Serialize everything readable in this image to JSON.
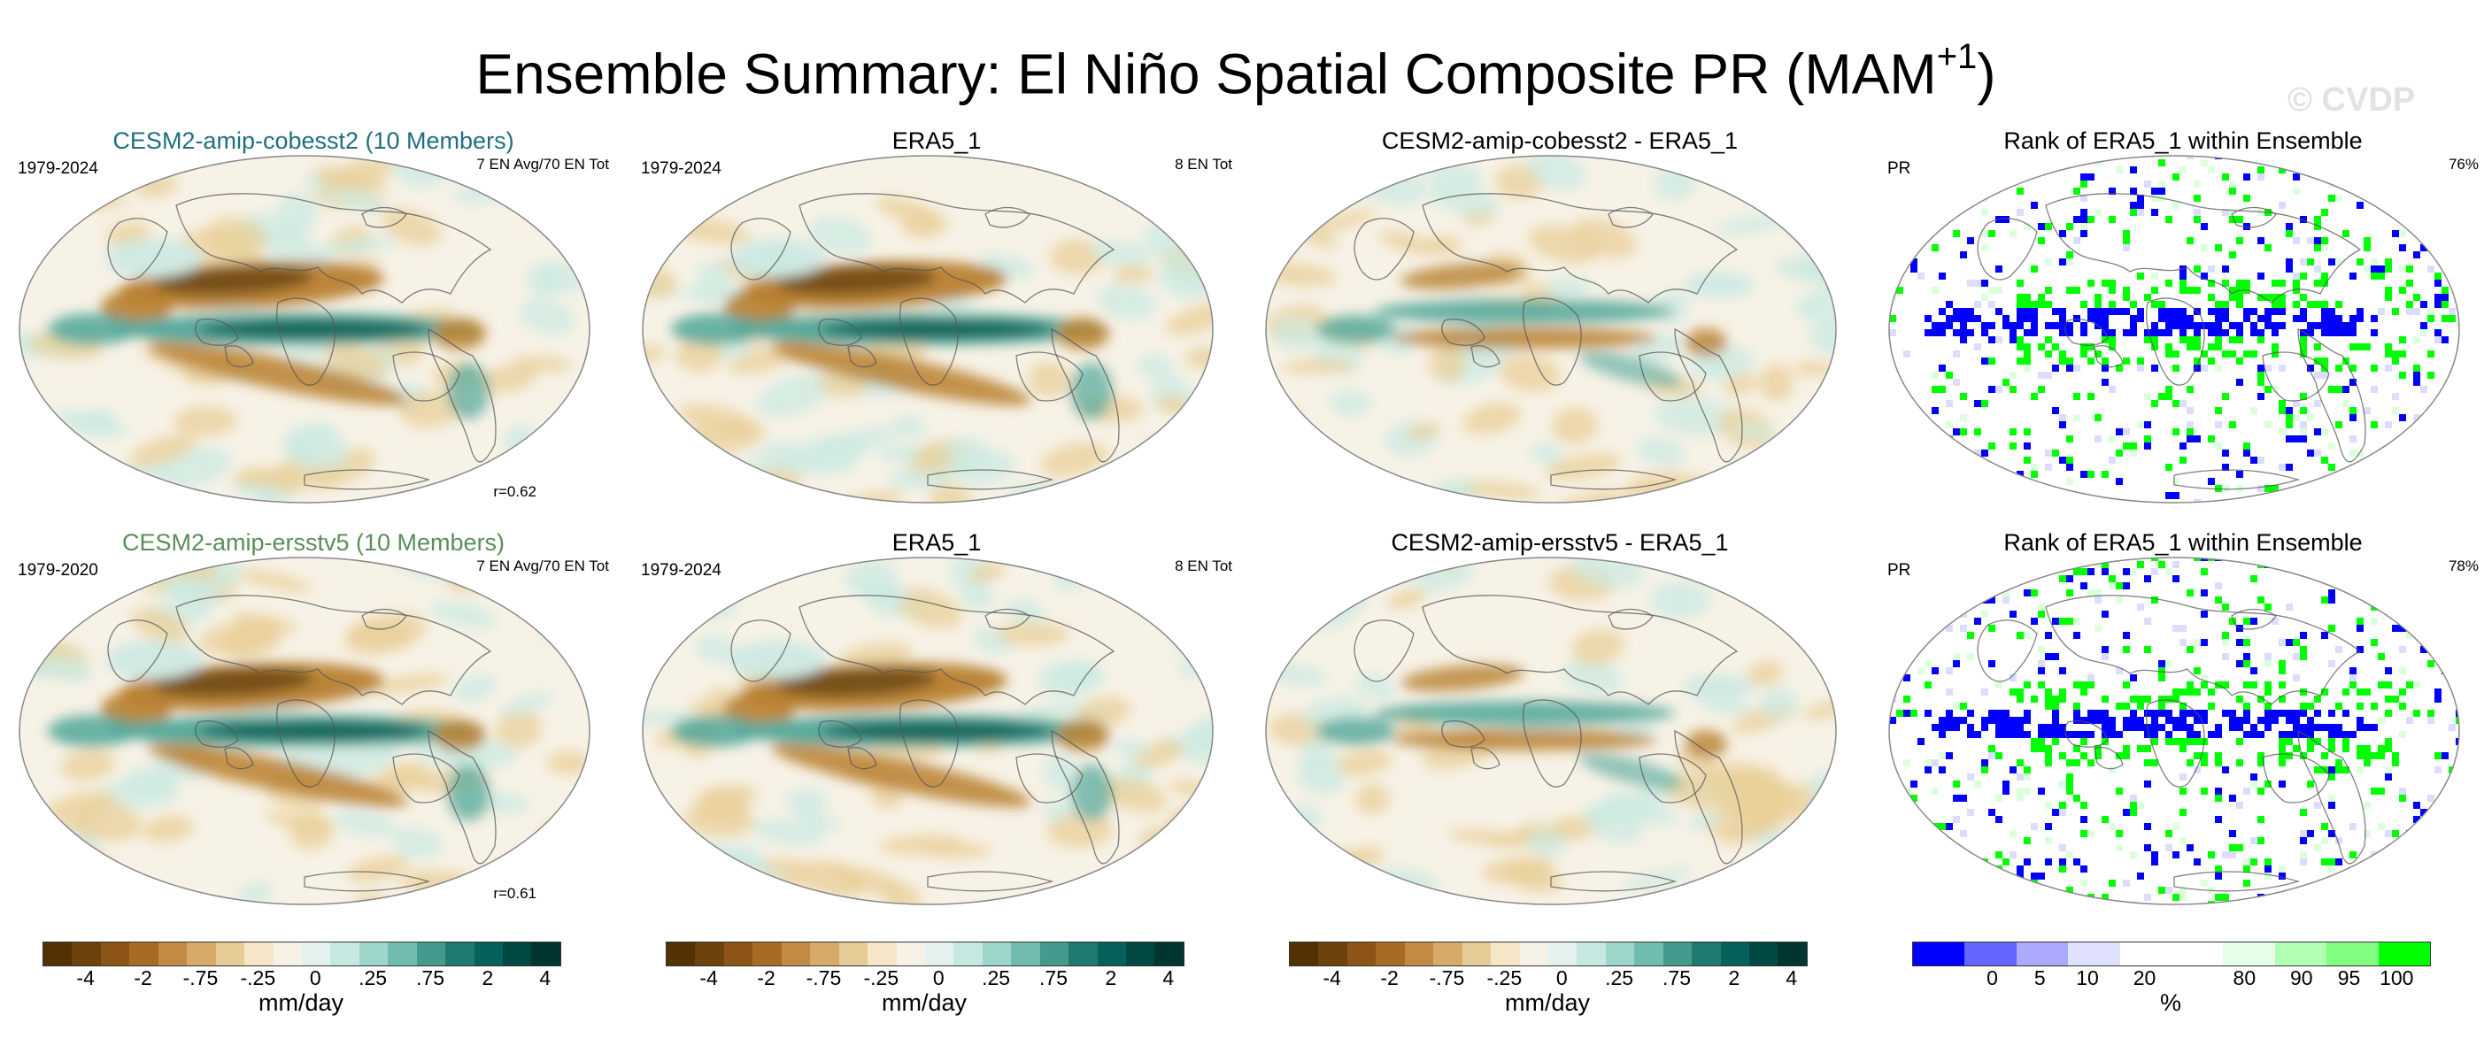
{
  "title": {
    "main": "Ensemble Summary: El Niño Spatial Composite PR (MAM",
    "sup": "+1",
    "close": ")"
  },
  "watermark": "© CVDP",
  "colors": {
    "brown_dark": "#5a3a0e",
    "brown_mid": "#b8802f",
    "tan": "#e8cf98",
    "neutral": "#f7f2e6",
    "teal_light": "#cbe9e2",
    "teal_mid": "#4fa79a",
    "teal_dark": "#0d5d54",
    "rank_blue": "#0000ff",
    "rank_green": "#00ff00",
    "coast": "#555555"
  },
  "panels": {
    "r1c1": {
      "title": "CESM2-amip-cobesst2 (10 Members)",
      "title_color": "#1f6f80",
      "left": "1979-2024",
      "right": "7 EN Avg/70 EN Tot",
      "bottom": "r=0.62"
    },
    "r1c2": {
      "title": "ERA5_1",
      "left": "1979-2024",
      "right": "8 EN Tot"
    },
    "r1c3": {
      "title": "CESM2-amip-cobesst2 - ERA5_1"
    },
    "r1c4": {
      "title": "Rank of ERA5_1 within Ensemble",
      "left": "PR",
      "right": "76%"
    },
    "r2c1": {
      "title": "CESM2-amip-ersstv5 (10 Members)",
      "title_color": "#5b8d5b",
      "left": "1979-2020",
      "right": "7 EN Avg/70 EN Tot",
      "bottom": "r=0.61"
    },
    "r2c2": {
      "title": "ERA5_1",
      "left": "1979-2024",
      "right": "8 EN Tot"
    },
    "r2c3": {
      "title": "CESM2-amip-ersstv5 - ERA5_1"
    },
    "r2c4": {
      "title": "Rank of ERA5_1 within Ensemble",
      "left": "PR",
      "right": "78%"
    }
  },
  "colorbars": {
    "precip": {
      "label": "mm/day",
      "ticks": [
        "-4",
        "-2",
        "-.75",
        "-.25",
        "0",
        ".25",
        ".75",
        "2",
        "4"
      ],
      "colors": [
        "#543005",
        "#6e420c",
        "#8c5416",
        "#a86b26",
        "#c28a44",
        "#d6ab6a",
        "#e8cc98",
        "#f4e6c6",
        "#f7f2e6",
        "#e3f2ef",
        "#c7e8e1",
        "#9fd6cb",
        "#70bdb0",
        "#449a8d",
        "#1f7b70",
        "#08605a",
        "#004842",
        "#003530"
      ]
    },
    "rank": {
      "label": "%",
      "ticks": [
        "0",
        "5",
        "10",
        "20",
        "80",
        "90",
        "95",
        "100"
      ],
      "colors": [
        "#0000ff",
        "#6666ff",
        "#aaaaff",
        "#e0e0ff",
        "#ffffff",
        "#ffffff",
        "#e6ffe6",
        "#b3ffb3",
        "#80ff80",
        "#00ff00"
      ]
    }
  }
}
